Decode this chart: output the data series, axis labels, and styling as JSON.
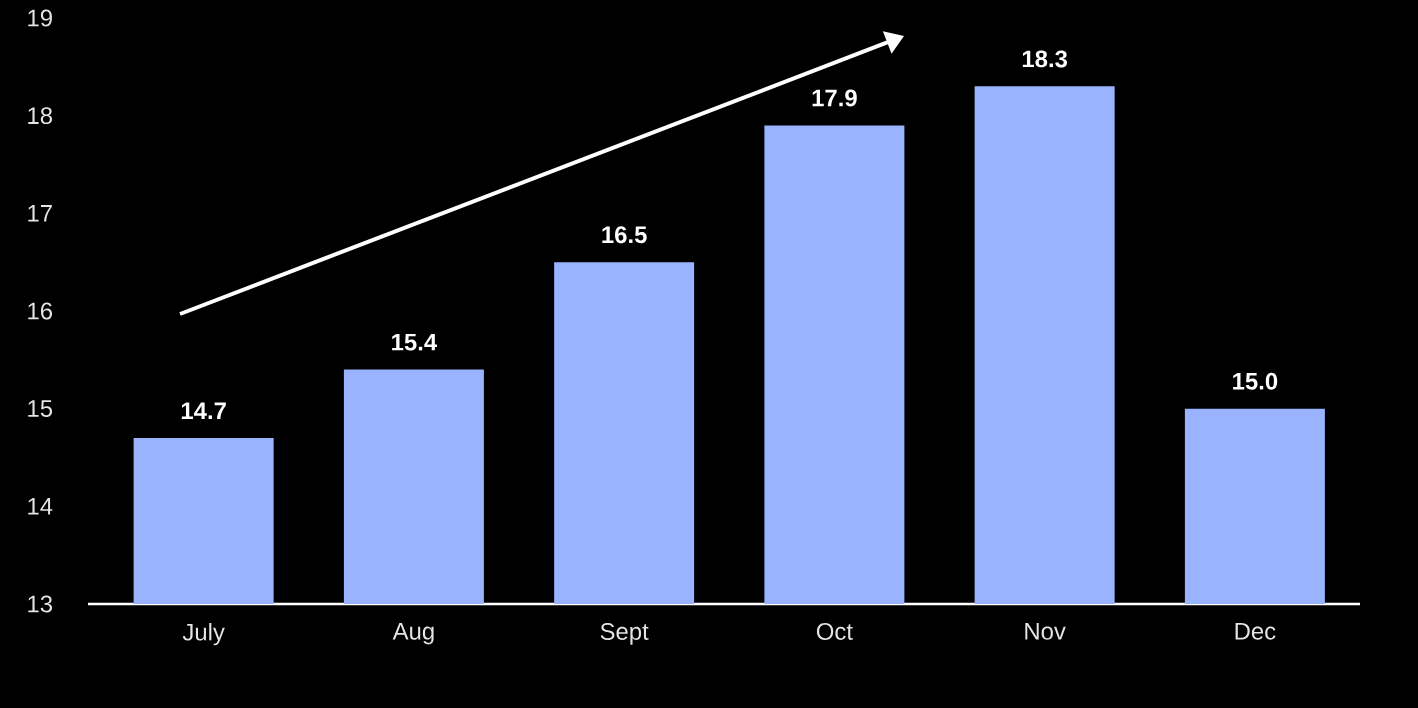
{
  "chart_data": {
    "type": "bar",
    "categories": [
      "July",
      "Aug",
      "Sept",
      "Oct",
      "Nov",
      "Dec"
    ],
    "values": [
      14.7,
      15.4,
      16.5,
      17.9,
      18.3,
      15.0
    ],
    "value_labels": [
      "14.7",
      "15.4",
      "16.5",
      "17.9",
      "18.3",
      "15.0"
    ],
    "color": "#99b3ff",
    "ylim": [
      13,
      19
    ],
    "yticks": [
      13,
      14,
      15,
      16,
      17,
      18,
      19
    ],
    "grid": false
  }
}
